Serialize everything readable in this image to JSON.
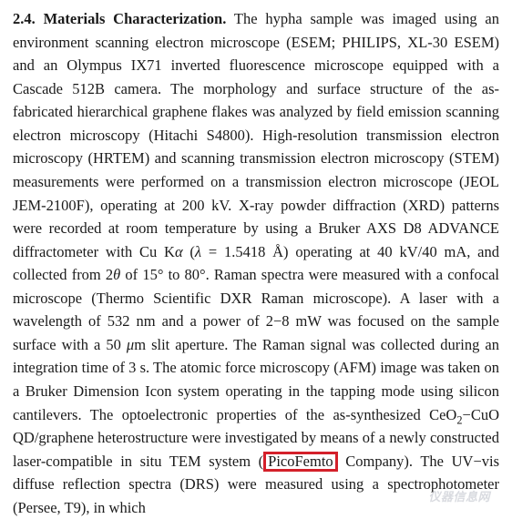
{
  "section": {
    "number": "2.4.",
    "title": "Materials Characterization."
  },
  "body": {
    "t01": "The hypha sample was imaged using an environment scanning electron microscope (ESEM; PHILIPS, XL-30 ESEM) and an Olympus IX71 inverted fluorescence microscope equipped with a Cascade 512B camera. The morphology and surface structure of the as-fabricated hierarchical graphene flakes was analyzed by field emission scanning electron microscopy (Hitachi S4800). High-resolution transmission electron microscopy (HRTEM) and scanning transmission electron microscopy (STEM) measurements were performed on a transmission electron microscope (JEOL JEM-2100F), operating at 200 kV. X-ray powder diffraction (XRD) patterns were recorded at room temperature by using a Bruker AXS D8 ADVANCE diffractometer with Cu K",
    "alpha": "α",
    "t02": " (",
    "lambda": "λ",
    "t03": " = 1.5418 Å) operating at 40 kV/40 mA, and collected from 2",
    "theta": "θ",
    "t04": " of 15° to 80°. Raman spectra were measured with a confocal microscope (Thermo Scientific DXR Raman microscope). A laser with a wavelength of 532 nm and a power of 2−8 mW was focused on the sample surface with a 50 ",
    "mu": "μ",
    "t05": "m slit aperture. The Raman signal was collected during an integration time of 3 s. The atomic force microscopy (AFM) image was taken on a Bruker Dimension Icon system operating in the tapping mode using silicon cantilevers. The optoelectronic properties of the as-synthesized CeO",
    "sub2a": "2",
    "t06": "−CuO QD/graphene heterostructure were investigated by means of a newly constructed laser-compatible in situ TEM system (",
    "company": "PicoFemto",
    "t07": " Company). The UV−vis diffuse reflection spectra (DRS) were measured using a spectrophotometer (Persee, T9), in which"
  },
  "watermark": "仪器信息网",
  "colors": {
    "highlight_border": "#d4202a",
    "text": "#1a1a1a",
    "watermark": "#d9dbe0",
    "background": "#ffffff"
  }
}
